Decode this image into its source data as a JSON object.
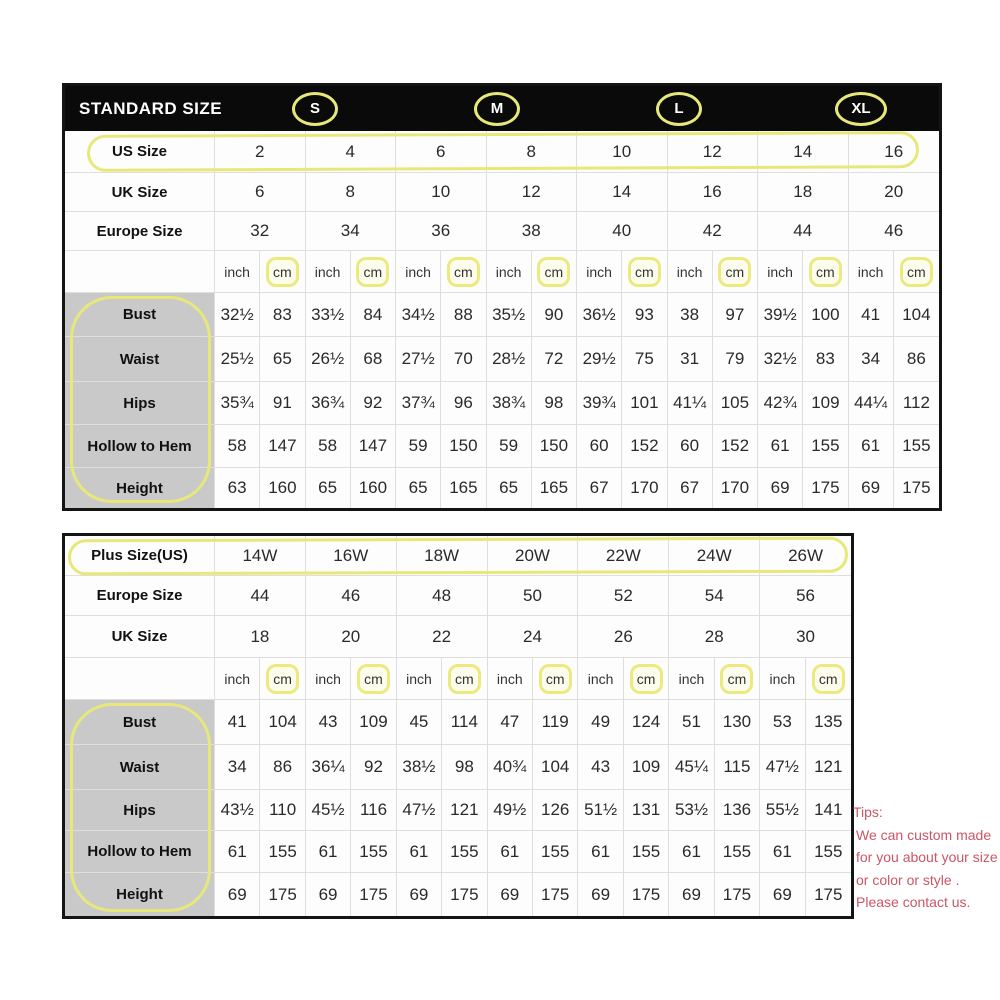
{
  "colors": {
    "annotation_yellow": "#e8e87a",
    "tips_red": "#cb5565",
    "header_bg": "#0a0a0a",
    "label_gray": "#c9c9c9"
  },
  "standard_table": {
    "header": {
      "title": "STANDARD SIZE",
      "sizes": [
        "S",
        "M",
        "L",
        "XL"
      ]
    },
    "size_rows": [
      {
        "label": "US Size",
        "values": [
          "2",
          "4",
          "6",
          "8",
          "10",
          "12",
          "14",
          "16"
        ],
        "highlighted": true
      },
      {
        "label": "UK Size",
        "values": [
          "6",
          "8",
          "10",
          "12",
          "14",
          "16",
          "18",
          "20"
        ],
        "highlighted": false
      },
      {
        "label": "Europe Size",
        "values": [
          "32",
          "34",
          "36",
          "38",
          "40",
          "42",
          "44",
          "46"
        ],
        "highlighted": false
      }
    ],
    "unit_row": {
      "inch": "inch",
      "cm": "cm",
      "pairs": 8
    },
    "measure_rows": [
      {
        "label": "Bust",
        "values": [
          "32½",
          "83",
          "33½",
          "84",
          "34½",
          "88",
          "35½",
          "90",
          "36½",
          "93",
          "38",
          "97",
          "39½",
          "100",
          "41",
          "104"
        ]
      },
      {
        "label": "Waist",
        "values": [
          "25½",
          "65",
          "26½",
          "68",
          "27½",
          "70",
          "28½",
          "72",
          "29½",
          "75",
          "31",
          "79",
          "32½",
          "83",
          "34",
          "86"
        ]
      },
      {
        "label": "Hips",
        "values": [
          "35¾",
          "91",
          "36¾",
          "92",
          "37¾",
          "96",
          "38¾",
          "98",
          "39¾",
          "101",
          "41¼",
          "105",
          "42¾",
          "109",
          "44¼",
          "112"
        ]
      },
      {
        "label": "Hollow to Hem",
        "values": [
          "58",
          "147",
          "58",
          "147",
          "59",
          "150",
          "59",
          "150",
          "60",
          "152",
          "60",
          "152",
          "61",
          "155",
          "61",
          "155"
        ]
      },
      {
        "label": "Height",
        "values": [
          "63",
          "160",
          "65",
          "160",
          "65",
          "165",
          "65",
          "165",
          "67",
          "170",
          "67",
          "170",
          "69",
          "175",
          "69",
          "175"
        ]
      }
    ]
  },
  "plus_table": {
    "size_rows": [
      {
        "label": "Plus Size(US)",
        "values": [
          "14W",
          "16W",
          "18W",
          "20W",
          "22W",
          "24W",
          "26W"
        ],
        "highlighted": true
      },
      {
        "label": "Europe Size",
        "values": [
          "44",
          "46",
          "48",
          "50",
          "52",
          "54",
          "56"
        ],
        "highlighted": false
      },
      {
        "label": "UK Size",
        "values": [
          "18",
          "20",
          "22",
          "24",
          "26",
          "28",
          "30"
        ],
        "highlighted": false
      }
    ],
    "unit_row": {
      "inch": "inch",
      "cm": "cm",
      "pairs": 7
    },
    "measure_rows": [
      {
        "label": "Bust",
        "values": [
          "41",
          "104",
          "43",
          "109",
          "45",
          "114",
          "47",
          "119",
          "49",
          "124",
          "51",
          "130",
          "53",
          "135"
        ]
      },
      {
        "label": "Waist",
        "values": [
          "34",
          "86",
          "36¼",
          "92",
          "38½",
          "98",
          "40¾",
          "104",
          "43",
          "109",
          "45¼",
          "115",
          "47½",
          "121"
        ]
      },
      {
        "label": "Hips",
        "values": [
          "43½",
          "110",
          "45½",
          "116",
          "47½",
          "121",
          "49½",
          "126",
          "51½",
          "131",
          "53½",
          "136",
          "55½",
          "141"
        ]
      },
      {
        "label": "Hollow to Hem",
        "values": [
          "61",
          "155",
          "61",
          "155",
          "61",
          "155",
          "61",
          "155",
          "61",
          "155",
          "61",
          "155",
          "61",
          "155"
        ]
      },
      {
        "label": "Height",
        "values": [
          "69",
          "175",
          "69",
          "175",
          "69",
          "175",
          "69",
          "175",
          "69",
          "175",
          "69",
          "175",
          "69",
          "175"
        ]
      }
    ]
  },
  "tips": {
    "title": "Tips:",
    "lines": [
      "We can custom made",
      "for you about your size",
      "or color or style .",
      "Please contact us."
    ]
  }
}
